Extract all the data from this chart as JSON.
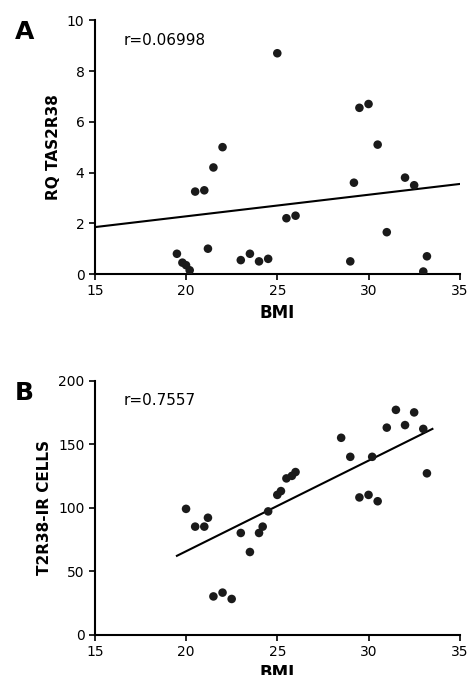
{
  "panel_A": {
    "label": "A",
    "x": [
      19.5,
      19.8,
      20.0,
      20.2,
      20.5,
      21.0,
      21.2,
      21.5,
      22.0,
      23.0,
      23.5,
      24.0,
      24.5,
      25.0,
      25.5,
      26.0,
      29.0,
      29.2,
      29.5,
      30.0,
      30.5,
      31.0,
      32.0,
      32.5,
      33.0,
      33.2
    ],
    "y": [
      0.8,
      0.45,
      0.35,
      0.15,
      3.25,
      3.3,
      1.0,
      4.2,
      5.0,
      0.55,
      0.8,
      0.5,
      0.6,
      8.7,
      2.2,
      2.3,
      0.5,
      3.6,
      6.55,
      6.7,
      5.1,
      1.65,
      3.8,
      3.5,
      0.1,
      0.7
    ],
    "r_label": "r=0.06998",
    "xlabel": "BMI",
    "ylabel": "RQ TAS2R38",
    "xlim": [
      15,
      35
    ],
    "ylim": [
      0,
      10
    ],
    "xticks": [
      15,
      20,
      25,
      30,
      35
    ],
    "yticks": [
      0,
      2,
      4,
      6,
      8,
      10
    ],
    "line_x": [
      15,
      35
    ],
    "line_y": [
      1.85,
      3.55
    ]
  },
  "panel_B": {
    "label": "B",
    "x": [
      20.0,
      20.5,
      21.0,
      21.2,
      21.5,
      22.0,
      22.5,
      23.0,
      23.5,
      24.0,
      24.2,
      24.5,
      25.0,
      25.2,
      25.5,
      25.8,
      26.0,
      28.5,
      29.0,
      29.5,
      30.0,
      30.2,
      30.5,
      31.0,
      31.5,
      32.0,
      32.5,
      33.0,
      33.2
    ],
    "y": [
      99,
      85,
      85,
      92,
      30,
      33,
      28,
      80,
      65,
      80,
      85,
      97,
      110,
      113,
      123,
      125,
      128,
      155,
      140,
      108,
      110,
      140,
      105,
      163,
      177,
      165,
      175,
      162,
      127
    ],
    "r_label": "r=0.7557",
    "xlabel": "BMI",
    "ylabel": "T2R38-IR CELLS",
    "xlim": [
      15,
      35
    ],
    "ylim": [
      0,
      200
    ],
    "xticks": [
      15,
      20,
      25,
      30,
      35
    ],
    "yticks": [
      0,
      50,
      100,
      150,
      200
    ],
    "line_x": [
      19.5,
      33.5
    ],
    "line_y": [
      62,
      162
    ]
  },
  "dot_color": "#1a1a1a",
  "line_color": "#000000",
  "dot_size": 38,
  "font_size_ylabel": 11,
  "font_size_tick": 10,
  "font_size_xlabel": 12,
  "font_size_r": 11,
  "font_size_panel": 18
}
